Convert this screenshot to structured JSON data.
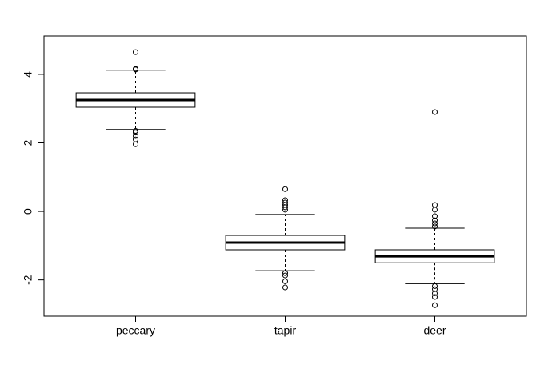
{
  "chart_data": {
    "type": "box",
    "categories": [
      "peccary",
      "tapir",
      "deer"
    ],
    "boxes": [
      {
        "whisker_low": 2.39,
        "q1": 3.04,
        "median": 3.25,
        "q3": 3.46,
        "whisker_high": 4.12,
        "outliers": [
          4.65,
          4.16,
          4.14,
          2.35,
          2.3,
          2.2,
          2.1,
          1.96
        ]
      },
      {
        "whisker_low": -1.73,
        "q1": -1.12,
        "median": -0.91,
        "q3": -0.7,
        "whisker_high": -0.09,
        "outliers": [
          0.65,
          0.33,
          0.26,
          0.19,
          0.12,
          0.05,
          -1.8,
          -1.87,
          -2.04,
          -2.22
        ]
      },
      {
        "whisker_low": -2.11,
        "q1": -1.5,
        "median": -1.31,
        "q3": -1.12,
        "whisker_high": -0.49,
        "outliers": [
          2.9,
          0.19,
          0.05,
          -0.14,
          -0.26,
          -0.35,
          -0.44,
          -2.18,
          -2.27,
          -2.39,
          -2.5,
          -2.74
        ]
      }
    ],
    "color": "#000000",
    "ylim": [
      -3.06,
      5.12
    ],
    "yticks": [
      -2,
      0,
      2,
      4
    ]
  }
}
